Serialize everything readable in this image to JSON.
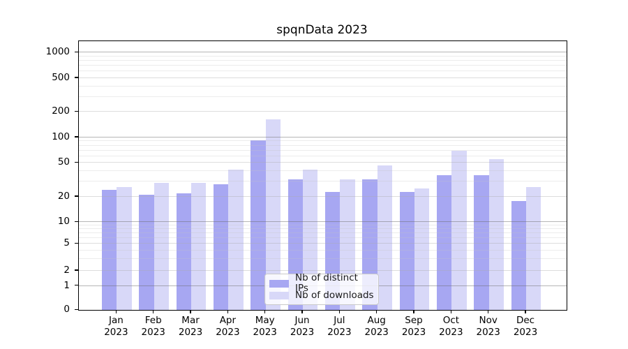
{
  "chart_data": {
    "type": "bar",
    "title": "spqnData 2023",
    "categories": [
      "Jan 2023",
      "Feb 2023",
      "Mar 2023",
      "Apr 2023",
      "May 2023",
      "Jun 2023",
      "Jul 2023",
      "Aug 2023",
      "Sep 2023",
      "Oct 2023",
      "Nov 2023",
      "Dec 2023"
    ],
    "series": [
      {
        "name": "Nb of distinct IPs",
        "color": "#a7a7f2",
        "values": [
          24,
          21,
          22,
          28,
          92,
          32,
          23,
          32,
          23,
          36,
          36,
          18
        ]
      },
      {
        "name": "Nb of downloads",
        "color": "#d8d8f8",
        "values": [
          26,
          29,
          29,
          42,
          162,
          42,
          32,
          47,
          25,
          70,
          55,
          26
        ]
      }
    ],
    "yticks": [
      0,
      1,
      2,
      5,
      10,
      20,
      50,
      100,
      200,
      500,
      1000
    ],
    "xlabel": "",
    "ylabel": "",
    "yscale": "symlog",
    "ylim": [
      0,
      1400
    ],
    "grid": true,
    "legend_position": "lower center"
  }
}
